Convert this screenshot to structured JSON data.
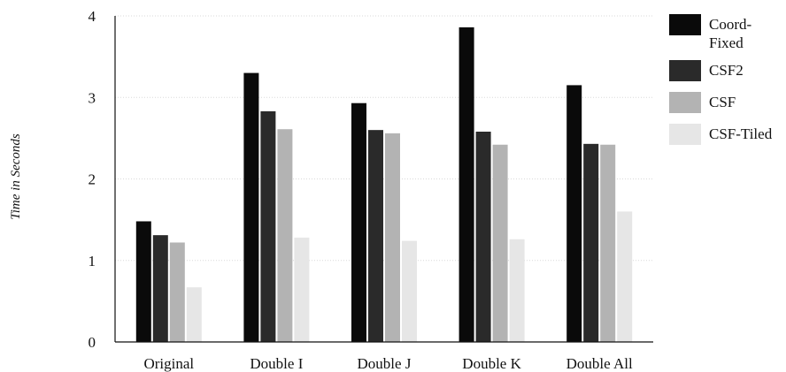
{
  "chart_data": {
    "type": "bar",
    "title": "",
    "xlabel": "",
    "ylabel": "Time in Seconds",
    "ylim": [
      0,
      4
    ],
    "yticks": [
      0,
      1,
      2,
      3,
      4
    ],
    "grid": true,
    "legend_position": "top-right",
    "categories": [
      "Original",
      "Double I",
      "Double J",
      "Double K",
      "Double All"
    ],
    "series": [
      {
        "name": "Coord-Fixed",
        "legend_lines": [
          "Coord-",
          "Fixed"
        ],
        "color": "#0a0a0a",
        "values": [
          1.48,
          3.3,
          2.93,
          3.86,
          3.15
        ]
      },
      {
        "name": "CSF2",
        "legend_lines": [
          "CSF2"
        ],
        "color": "#2a2a2a",
        "values": [
          1.31,
          2.83,
          2.6,
          2.58,
          2.43
        ]
      },
      {
        "name": "CSF",
        "legend_lines": [
          "CSF"
        ],
        "color": "#b3b3b3",
        "values": [
          1.22,
          2.61,
          2.56,
          2.42,
          2.42
        ]
      },
      {
        "name": "CSF-Tiled",
        "legend_lines": [
          "CSF-Tiled"
        ],
        "color": "#e6e6e6",
        "values": [
          0.67,
          1.28,
          1.24,
          1.26,
          1.6
        ]
      }
    ]
  }
}
